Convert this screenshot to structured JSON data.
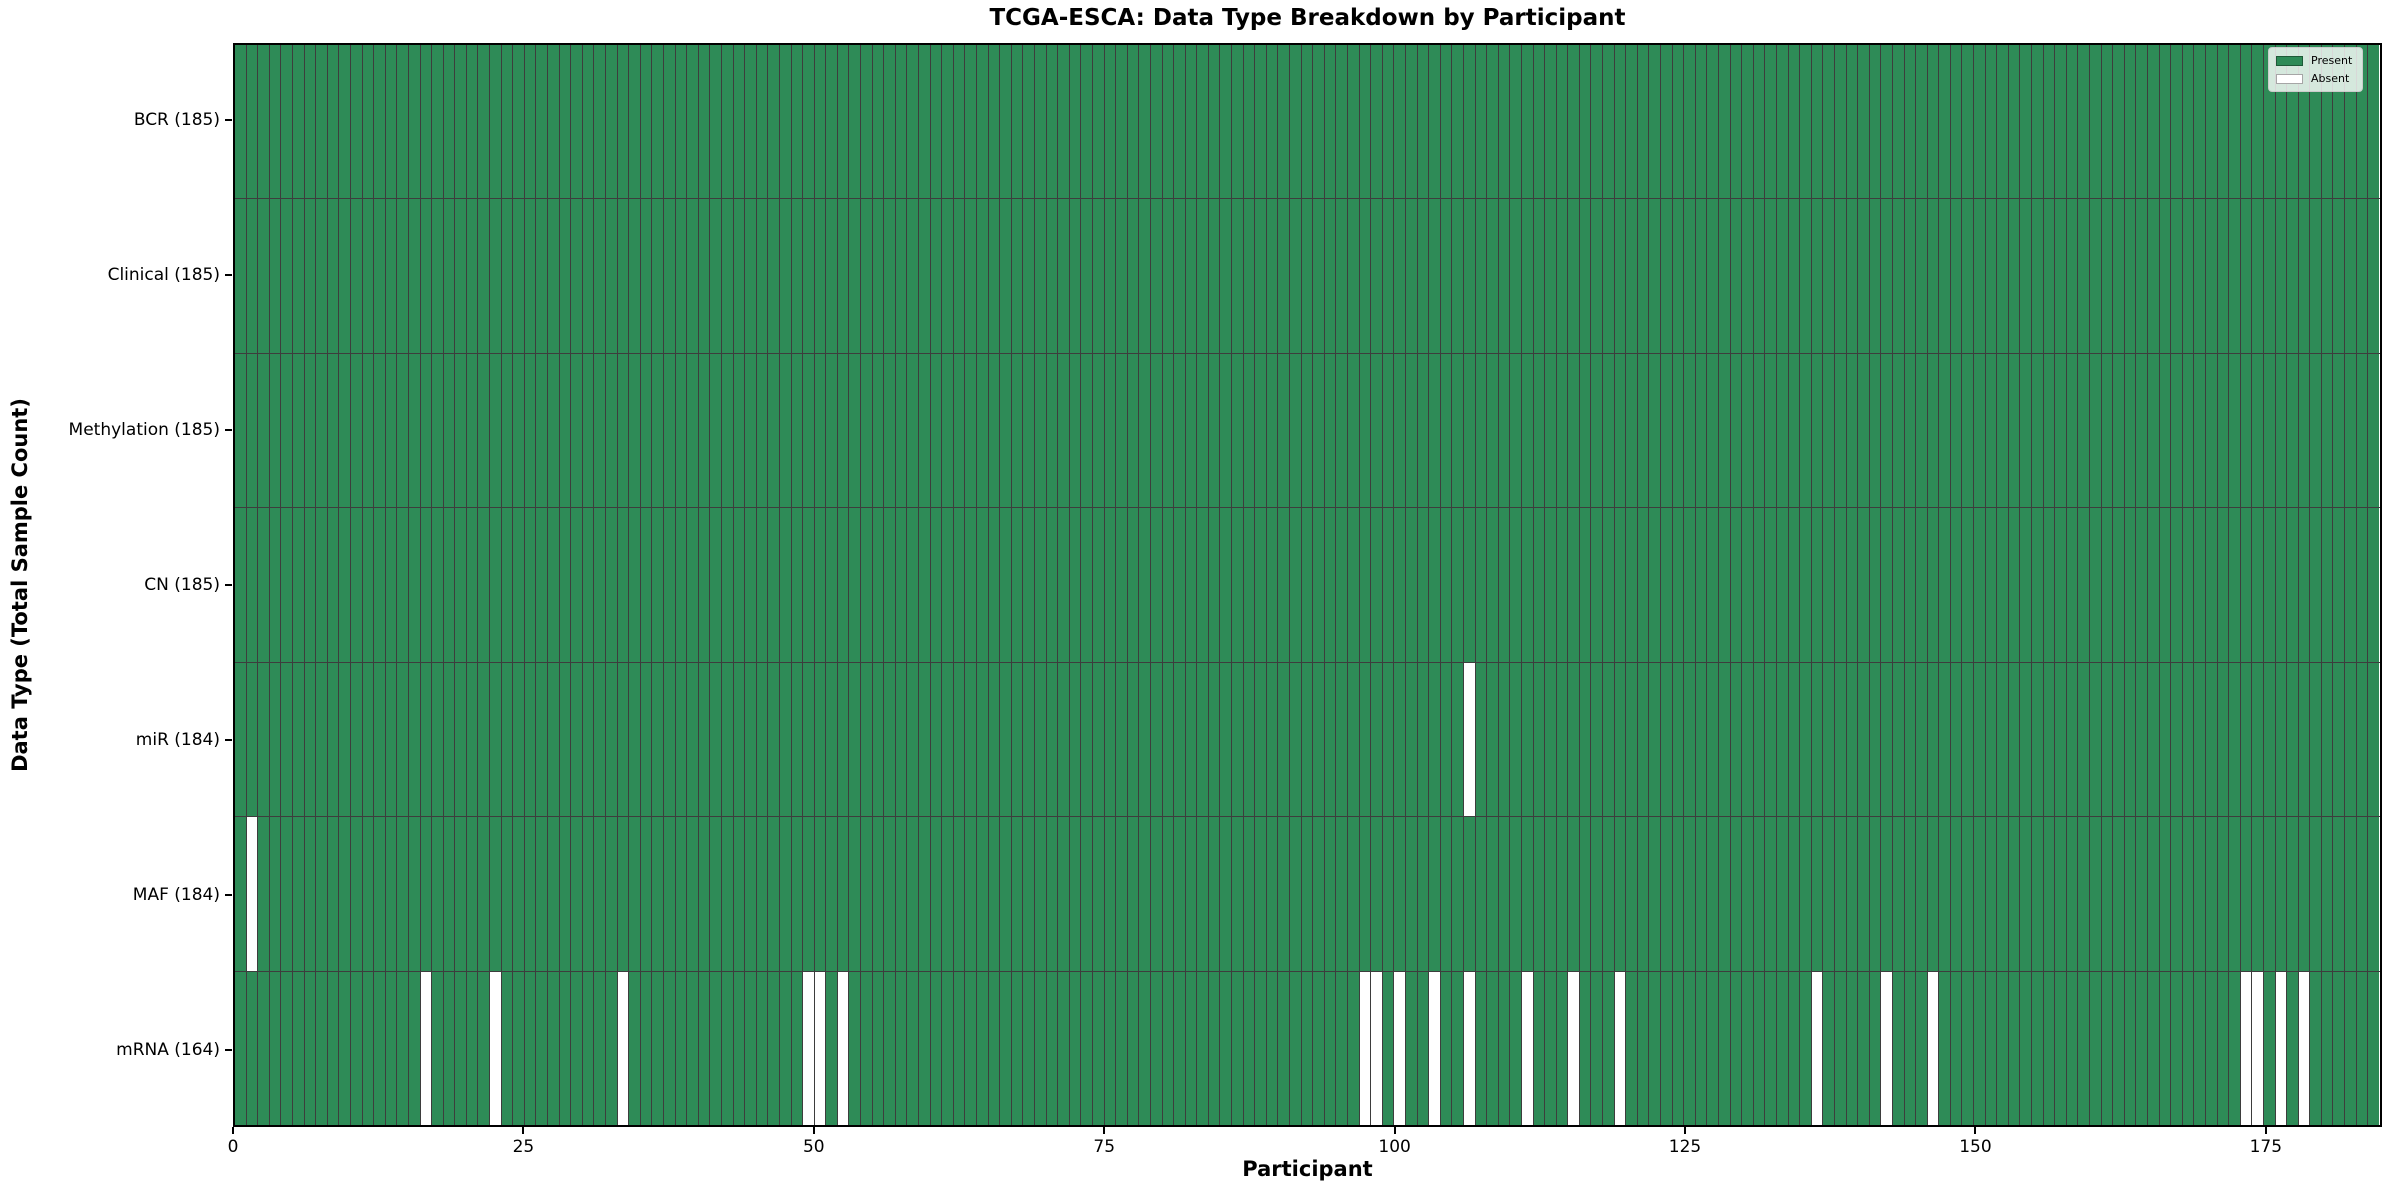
{
  "title": "TCGA-ESCA: Data Type Breakdown by Participant",
  "chart_data": {
    "type": "heatmap",
    "title": "TCGA-ESCA: Data Type Breakdown by Participant",
    "xlabel": "Participant",
    "ylabel": "Data Type (Total Sample Count)",
    "n_participants": 185,
    "x_ticks": [
      0,
      25,
      50,
      75,
      100,
      125,
      150,
      175
    ],
    "x_range": [
      0,
      185
    ],
    "grid": "per-cell edges",
    "legend_position": "upper right",
    "legend": [
      {
        "label": "Present",
        "color": "#2e8b57"
      },
      {
        "label": "Absent",
        "color": "#ffffff"
      }
    ],
    "rows": [
      {
        "label": "BCR (185)",
        "data_type": "BCR",
        "total": 185,
        "absent_participants": []
      },
      {
        "label": "Clinical (185)",
        "data_type": "Clinical",
        "total": 185,
        "absent_participants": []
      },
      {
        "label": "Methylation (185)",
        "data_type": "Methylation",
        "total": 185,
        "absent_participants": []
      },
      {
        "label": "CN (185)",
        "data_type": "CN",
        "total": 185,
        "absent_participants": []
      },
      {
        "label": "miR (184)",
        "data_type": "miR",
        "total": 184,
        "absent_participants": [
          106
        ]
      },
      {
        "label": "MAF (184)",
        "data_type": "MAF",
        "total": 184,
        "absent_participants": [
          1
        ]
      },
      {
        "label": "mRNA (164)",
        "data_type": "mRNA",
        "total": 164,
        "absent_participants": [
          16,
          22,
          33,
          49,
          50,
          52,
          97,
          98,
          100,
          103,
          106,
          111,
          115,
          119,
          136,
          142,
          146,
          173,
          174,
          176,
          178
        ]
      }
    ],
    "colors": {
      "present": "#2e8b57",
      "absent": "#ffffff",
      "edge": "#3d3d3d",
      "frame": "#000000"
    }
  }
}
